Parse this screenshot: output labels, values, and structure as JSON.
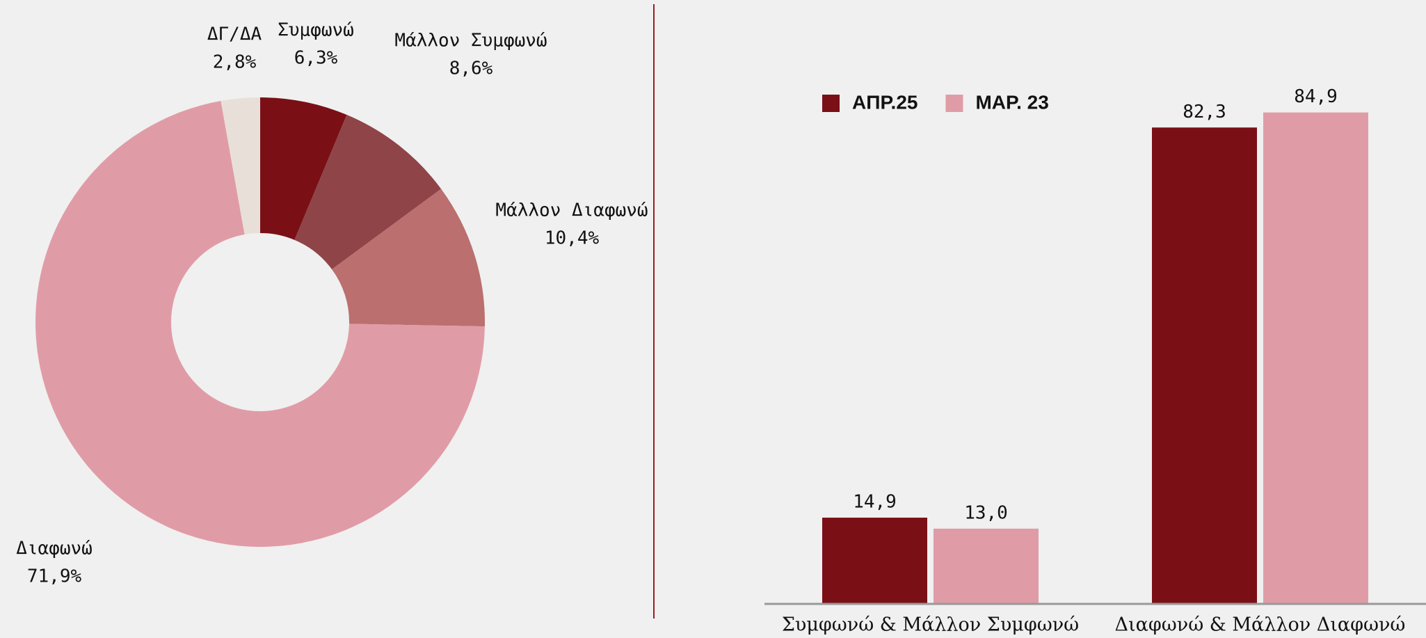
{
  "chart_data": [
    {
      "type": "pie",
      "categories": [
        "Συμφωνώ",
        "Μάλλον Συμφωνώ",
        "Μάλλον Διαφωνώ",
        "Διαφωνώ",
        "ΔΓ/ΔΑ"
      ],
      "values": [
        6.3,
        8.6,
        10.4,
        71.9,
        2.8
      ],
      "value_labels": [
        "6,3%",
        "8,6%",
        "10,4%",
        "71,9%",
        "2,8%"
      ],
      "colors": [
        "#7a1016",
        "#8f4448",
        "#bb6f6f",
        "#e09ca6",
        "#e8e0d8"
      ]
    },
    {
      "type": "bar",
      "categories": [
        "Συμφωνώ & Μάλλον Συμφωνώ",
        "Διαφωνώ & Μάλλον Διαφωνώ"
      ],
      "series": [
        {
          "name": "ΑΠΡ.25",
          "color": "#7a1016",
          "values": [
            14.9,
            82.3
          ],
          "value_labels": [
            "14,9",
            "82,3"
          ]
        },
        {
          "name": "ΜΑΡ. 23",
          "color": "#e09ca6",
          "values": [
            13.0,
            84.9
          ],
          "value_labels": [
            "13,0",
            "84,9"
          ]
        }
      ],
      "ylim": [
        0,
        100
      ]
    }
  ]
}
